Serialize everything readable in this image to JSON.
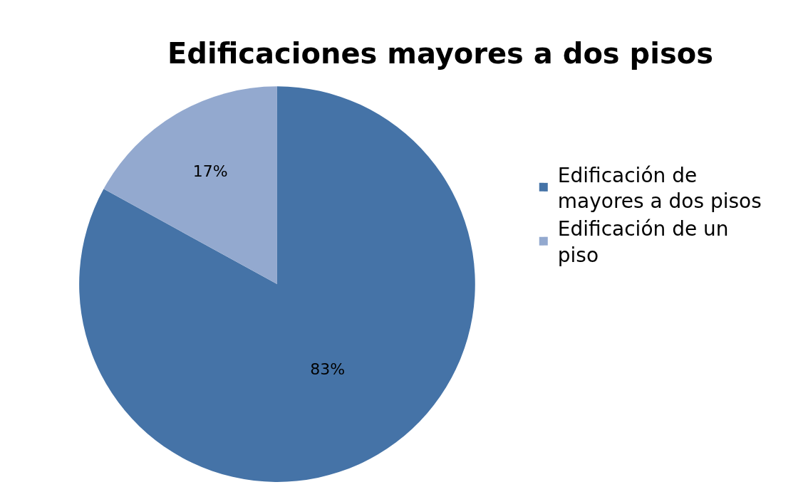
{
  "chart_data": {
    "type": "pie",
    "title": "Edificaciones mayores a dos pisos",
    "categories": [
      "Edificación de mayores a dos pisos",
      "Edificación de un piso"
    ],
    "values": [
      83,
      17
    ],
    "colors": [
      "#4573a7",
      "#93a9cf"
    ],
    "value_labels": [
      "83%",
      "17%"
    ],
    "legend": "right"
  }
}
